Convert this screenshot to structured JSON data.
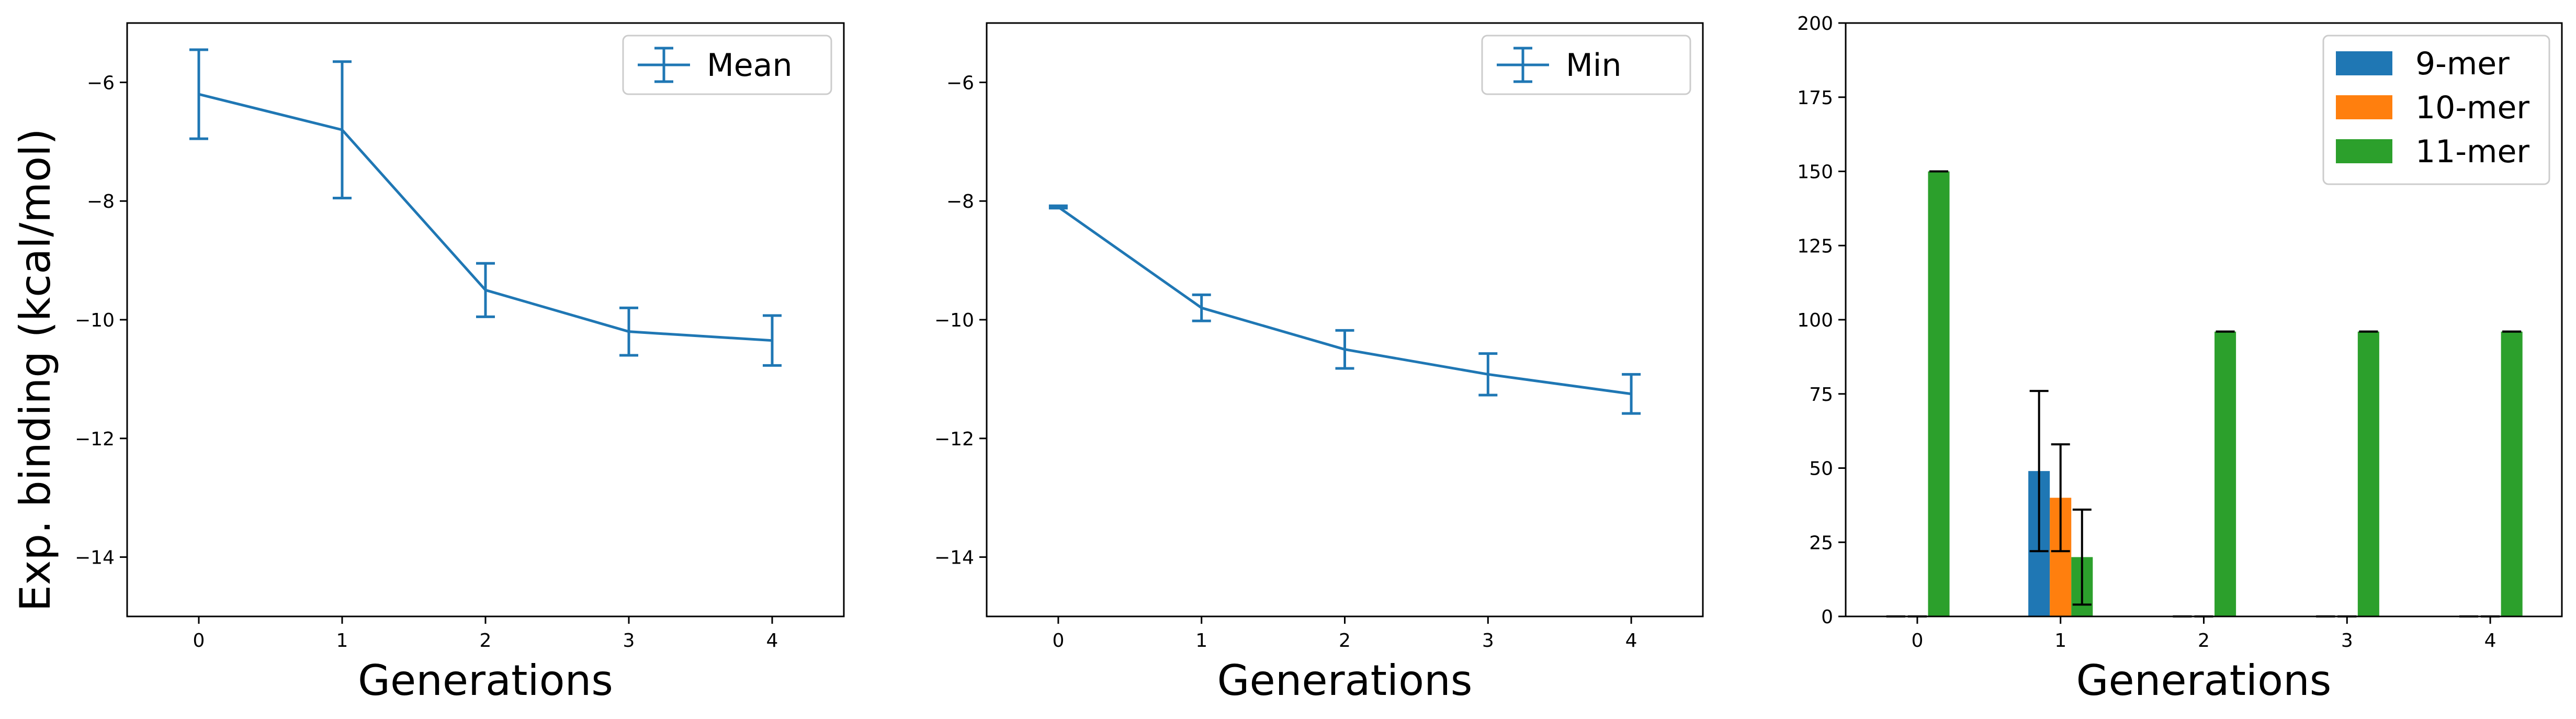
{
  "figure": {
    "ylabel": "Exp. binding (kcal/mol)"
  },
  "chart_data": [
    {
      "type": "line",
      "xlabel": "Generations",
      "ylabel": "Exp. binding (kcal/mol)",
      "x": [
        0,
        1,
        2,
        3,
        4
      ],
      "xticks": [
        "0",
        "1",
        "2",
        "3",
        "4"
      ],
      "xlim": [
        -0.5,
        4.5
      ],
      "ylim": [
        -15,
        -5
      ],
      "yticks": [
        -14,
        -12,
        -10,
        -8,
        -6
      ],
      "yticklabels": [
        "−14",
        "−12",
        "−10",
        "−8",
        "−6"
      ],
      "grid": false,
      "legend": "top-right",
      "color": "#1f77b4",
      "series": [
        {
          "name": "Mean",
          "values": [
            -6.2,
            -6.8,
            -9.5,
            -10.2,
            -10.35
          ],
          "errors": [
            0.75,
            1.15,
            0.45,
            0.4,
            0.42
          ]
        }
      ]
    },
    {
      "type": "line",
      "xlabel": "Generations",
      "ylabel": "",
      "x": [
        0,
        1,
        2,
        3,
        4
      ],
      "xticks": [
        "0",
        "1",
        "2",
        "3",
        "4"
      ],
      "xlim": [
        -0.5,
        4.5
      ],
      "ylim": [
        -15,
        -5
      ],
      "yticks": [
        -14,
        -12,
        -10,
        -8,
        -6
      ],
      "yticklabels": [
        "−14",
        "−12",
        "−10",
        "−8",
        "−6"
      ],
      "grid": false,
      "legend": "top-right",
      "color": "#1f77b4",
      "series": [
        {
          "name": "Min",
          "values": [
            -8.1,
            -9.8,
            -10.5,
            -10.92,
            -11.25
          ],
          "errors": [
            0.02,
            0.22,
            0.32,
            0.35,
            0.33
          ]
        }
      ]
    },
    {
      "type": "bar",
      "xlabel": "Generations",
      "ylabel": "",
      "categories": [
        "0",
        "1",
        "2",
        "3",
        "4"
      ],
      "xlim": [
        -0.5,
        4.5
      ],
      "ylim": [
        0,
        200
      ],
      "yticks": [
        0,
        25,
        50,
        75,
        100,
        125,
        150,
        175,
        200
      ],
      "yticklabels": [
        "0",
        "25",
        "50",
        "75",
        "100",
        "125",
        "150",
        "175",
        "200"
      ],
      "grid": false,
      "legend": "top-right",
      "series": [
        {
          "name": "9-mer",
          "color": "#1f77b4",
          "values": [
            0,
            49,
            0,
            0,
            0
          ],
          "errors": [
            0,
            27,
            0,
            0,
            0
          ]
        },
        {
          "name": "10-mer",
          "color": "#ff7f0e",
          "values": [
            0,
            40,
            0,
            0,
            0
          ],
          "errors": [
            0,
            18,
            0,
            0,
            0
          ]
        },
        {
          "name": "11-mer",
          "color": "#2ca02c",
          "values": [
            150,
            20,
            96,
            96,
            96
          ],
          "errors": [
            0,
            16,
            0,
            0,
            0
          ]
        }
      ]
    }
  ]
}
